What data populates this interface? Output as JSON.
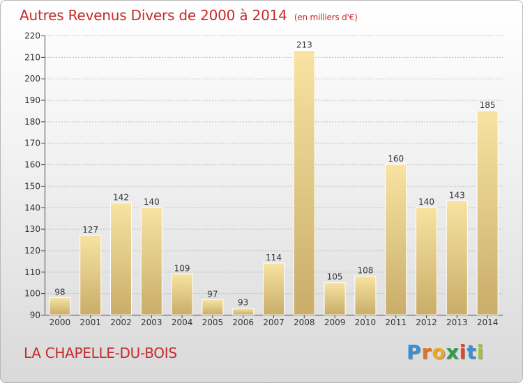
{
  "title": "Autres Revenus Divers de 2000 à 2014",
  "subtitle": "(en milliers d'€)",
  "commune": "LA CHAPELLE-DU-BOIS",
  "logo": [
    "P",
    "r",
    "o",
    "x",
    "i",
    "t",
    "i"
  ],
  "colors": {
    "title": "#c62a2a",
    "bar_light": "#f8e3a2",
    "bar_dark": "#c9ad69",
    "grid": "#bdbdbd"
  },
  "chart_data": {
    "type": "bar",
    "title": "Autres Revenus Divers de 2000 à 2014",
    "categories": [
      "2000",
      "2001",
      "2002",
      "2003",
      "2004",
      "2005",
      "2006",
      "2007",
      "2008",
      "2009",
      "2010",
      "2011",
      "2012",
      "2013",
      "2014"
    ],
    "values": [
      98,
      127,
      142,
      140,
      109,
      97,
      93,
      114,
      213,
      105,
      108,
      160,
      140,
      143,
      185
    ],
    "ylim": [
      90,
      220
    ],
    "yticks": [
      90,
      100,
      110,
      120,
      130,
      140,
      150,
      160,
      170,
      180,
      190,
      200,
      210,
      220
    ],
    "grid": true,
    "data_labels": true
  }
}
